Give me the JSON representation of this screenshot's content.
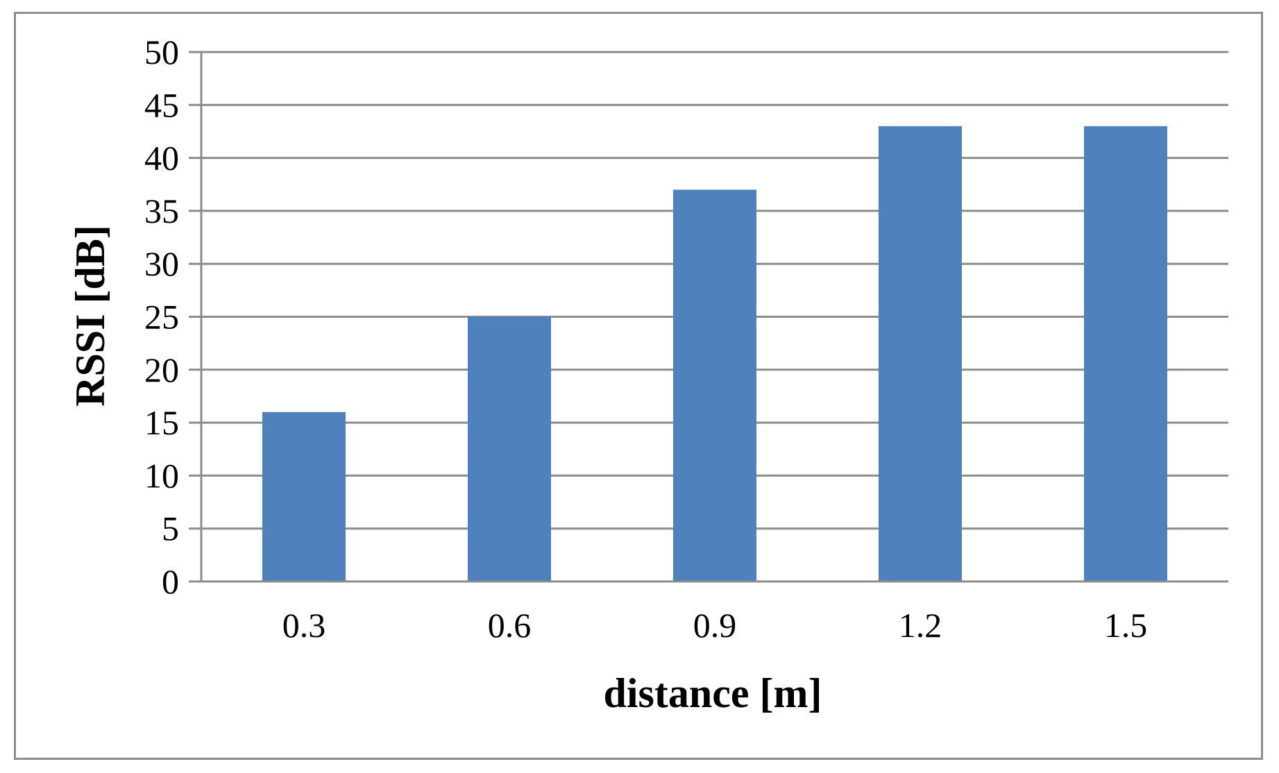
{
  "chart_data": {
    "type": "bar",
    "categories": [
      "0.3",
      "0.6",
      "0.9",
      "1.2",
      "1.5"
    ],
    "values": [
      16,
      25,
      37,
      43,
      43
    ],
    "title": "",
    "xlabel": "distance [m]",
    "ylabel": "RSSI [dB]",
    "ylim": [
      0,
      50
    ],
    "ytick_step": 5,
    "yticks": [
      "0",
      "5",
      "10",
      "15",
      "20",
      "25",
      "30",
      "35",
      "40",
      "45",
      "50"
    ],
    "grid": true,
    "legend": "none"
  },
  "colors": {
    "bar": "#4f81bd",
    "grid": "#8c8c8c",
    "axis": "#8c8c8c",
    "frame": "#8c8c8c"
  }
}
